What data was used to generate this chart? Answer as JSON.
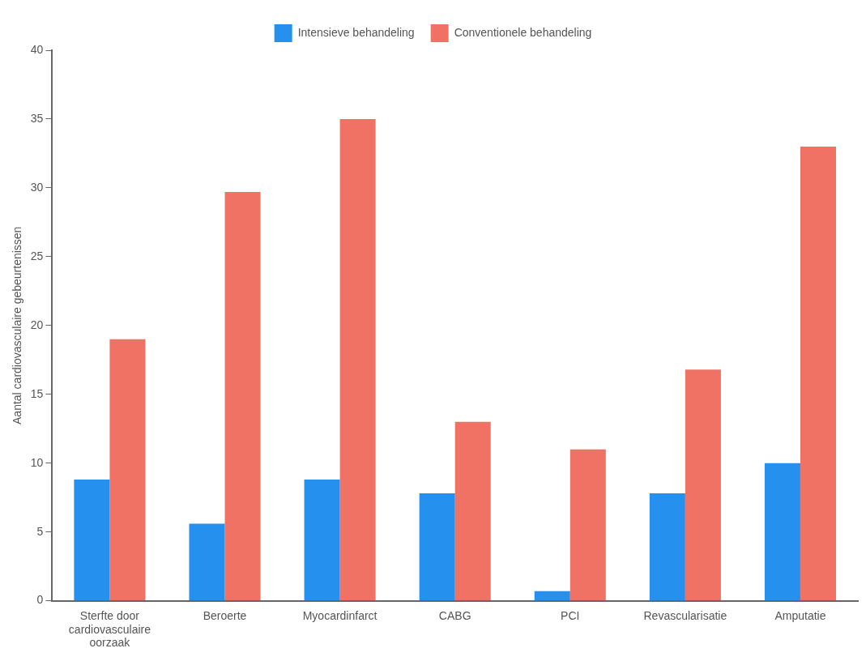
{
  "chart_data": {
    "type": "bar",
    "ylabel": "Aantal cardiovasculaire gebeurtenissen",
    "categories": [
      "Sterfte door cardiovasculaire oorzaak",
      "Beroerte",
      "Myocardinfarct",
      "CABG",
      "PCI",
      "Revascularisatie",
      "Amputatie"
    ],
    "series": [
      {
        "name": "Intensieve behandeling",
        "color": "#2590ee",
        "values": [
          8.8,
          5.6,
          8.8,
          7.8,
          0.7,
          7.8,
          10
        ]
      },
      {
        "name": "Conventionele behandeling",
        "color": "#f07265",
        "values": [
          19,
          29.7,
          35,
          13,
          11,
          16.8,
          33
        ]
      }
    ],
    "ylim": [
      0,
      40
    ],
    "yticks": [
      0,
      5,
      10,
      15,
      20,
      25,
      30,
      35,
      40
    ],
    "grid": false,
    "legend": "top"
  }
}
